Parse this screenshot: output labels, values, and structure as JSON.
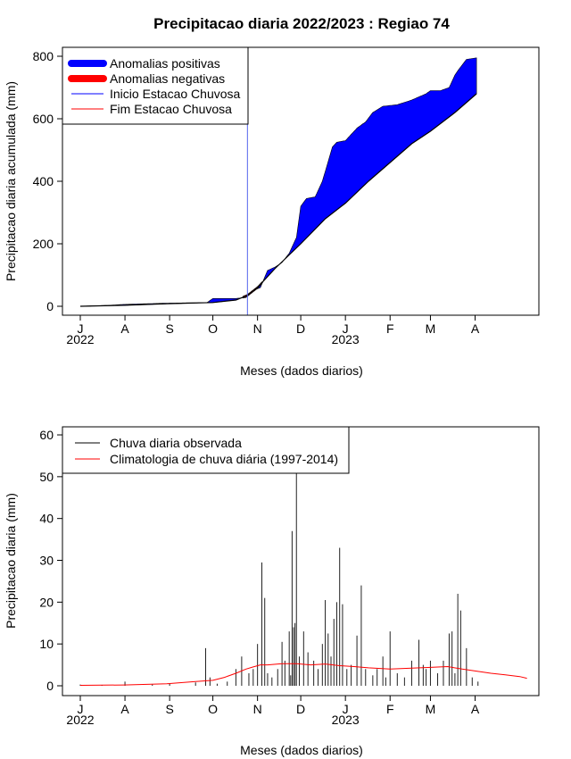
{
  "chart_data": [
    {
      "type": "area",
      "title": "Precipitacao diaria 2022/2023 : Regiao 74",
      "xlabel": "Meses (dados diarios)",
      "ylabel": "Precipitacao diaria acumulada (mm)",
      "ylim": [
        0,
        800
      ],
      "yticks": [
        "0",
        "200",
        "400",
        "600",
        "800"
      ],
      "xlim_day": [
        0,
        304
      ],
      "month_ticks": [
        {
          "label": "J",
          "day": 0
        },
        {
          "label": "A",
          "day": 31
        },
        {
          "label": "S",
          "day": 62
        },
        {
          "label": "O",
          "day": 92
        },
        {
          "label": "N",
          "day": 123
        },
        {
          "label": "D",
          "day": 153
        },
        {
          "label": "J",
          "day": 184
        },
        {
          "label": "F",
          "day": 215
        },
        {
          "label": "M",
          "day": 243
        },
        {
          "label": "A",
          "day": 274
        }
      ],
      "year_labels": [
        {
          "label": "2022",
          "day": 0
        },
        {
          "label": "2023",
          "day": 184
        }
      ],
      "legend": {
        "position": "top-left",
        "items": [
          {
            "label": "Anomalias positivas",
            "color": "#0000ff",
            "style": "thick"
          },
          {
            "label": "Anomalias negativas",
            "color": "#ff0000",
            "style": "thick"
          },
          {
            "label": "Inicio Estacao Chuvosa",
            "color": "#0000ff",
            "style": "thin"
          },
          {
            "label": "Fim Estacao Chuvosa",
            "color": "#ff0000",
            "style": "thin"
          }
        ]
      },
      "rainy_season_start_day": 116,
      "climatology_accum": {
        "days": [
          0,
          30,
          60,
          92,
          108,
          116,
          123,
          135,
          153,
          170,
          184,
          200,
          215,
          230,
          243,
          260,
          275
        ],
        "values": [
          0,
          3,
          8,
          12,
          20,
          35,
          60,
          120,
          200,
          280,
          330,
          400,
          460,
          520,
          560,
          620,
          680
        ]
      },
      "observed_accum": {
        "days": [
          0,
          20,
          30,
          60,
          88,
          92,
          108,
          115,
          120,
          125,
          130,
          135,
          140,
          145,
          150,
          153,
          157,
          163,
          168,
          175,
          178,
          184,
          192,
          198,
          203,
          210,
          220,
          230,
          240,
          243,
          250,
          256,
          260,
          263,
          268,
          275
        ],
        "values": [
          0,
          3,
          6,
          10,
          12,
          25,
          25,
          28,
          50,
          60,
          115,
          125,
          140,
          170,
          220,
          320,
          345,
          350,
          400,
          510,
          525,
          530,
          570,
          590,
          620,
          640,
          645,
          660,
          680,
          690,
          690,
          700,
          740,
          760,
          790,
          795
        ]
      },
      "negative_anomaly_span_days": [
        113,
        126
      ]
    },
    {
      "type": "bar",
      "title": "",
      "xlabel": "Meses (dados diarios)",
      "ylabel": "Precipitacao diaria (mm)",
      "ylim": [
        0,
        60
      ],
      "yticks": [
        "0",
        "10",
        "20",
        "30",
        "40",
        "50",
        "60"
      ],
      "xlim_day": [
        0,
        310
      ],
      "month_ticks": [
        {
          "label": "J",
          "day": 0
        },
        {
          "label": "A",
          "day": 31
        },
        {
          "label": "S",
          "day": 62
        },
        {
          "label": "O",
          "day": 92
        },
        {
          "label": "N",
          "day": 123
        },
        {
          "label": "D",
          "day": 153
        },
        {
          "label": "J",
          "day": 184
        },
        {
          "label": "F",
          "day": 215
        },
        {
          "label": "M",
          "day": 243
        },
        {
          "label": "A",
          "day": 274
        }
      ],
      "year_labels": [
        {
          "label": "2022",
          "day": 0
        },
        {
          "label": "2023",
          "day": 184
        }
      ],
      "legend": {
        "position": "top-left",
        "items": [
          {
            "label": "Chuva diaria observada",
            "color": "#000000"
          },
          {
            "label": "Climatologia de chuva diária (1997-2014)",
            "color": "#ff0000"
          }
        ]
      },
      "observed_daily": {
        "days": [
          0,
          15,
          31,
          50,
          62,
          80,
          87,
          90,
          95,
          102,
          108,
          112,
          117,
          120,
          123,
          126,
          128,
          130,
          133,
          137,
          140,
          142,
          145,
          146,
          147,
          148,
          149,
          150,
          152,
          155,
          158,
          162,
          165,
          168,
          170,
          172,
          174,
          176,
          178,
          180,
          182,
          185,
          188,
          192,
          195,
          198,
          203,
          206,
          210,
          212,
          215,
          220,
          225,
          230,
          235,
          238,
          240,
          243,
          248,
          252,
          256,
          258,
          260,
          262,
          264,
          268,
          272,
          276
        ],
        "values": [
          0.3,
          0.2,
          1.0,
          0.3,
          0.5,
          0.8,
          9.0,
          2.0,
          0.5,
          1.0,
          4.0,
          7.0,
          3.0,
          4.0,
          10.0,
          29.5,
          21.0,
          3.0,
          2.0,
          4.0,
          10.5,
          6.0,
          13.0,
          2.5,
          37.0,
          14.0,
          15.0,
          52.0,
          7.0,
          13.0,
          8.0,
          6.0,
          4.0,
          10.0,
          20.5,
          12.5,
          7.0,
          16.0,
          20.0,
          33.0,
          19.5,
          4.0,
          5.0,
          12.0,
          24.0,
          4.0,
          2.5,
          4.0,
          7.0,
          2.0,
          13.0,
          3.0,
          2.0,
          6.0,
          11.0,
          5.0,
          4.0,
          6.0,
          3.0,
          6.0,
          12.5,
          13.0,
          3.0,
          22.0,
          18.0,
          9.0,
          2.0,
          1.0
        ]
      },
      "climatology_daily": {
        "days": [
          0,
          30,
          60,
          80,
          92,
          100,
          108,
          115,
          120,
          125,
          130,
          140,
          150,
          160,
          170,
          180,
          190,
          200,
          215,
          230,
          243,
          255,
          265,
          275,
          285,
          295,
          305,
          310
        ],
        "values": [
          0.1,
          0.2,
          0.5,
          1.0,
          1.3,
          2.0,
          3.0,
          4.0,
          4.5,
          5.0,
          5.0,
          5.3,
          5.3,
          5.0,
          5.2,
          4.8,
          4.6,
          4.3,
          4.0,
          4.2,
          4.4,
          4.6,
          4.0,
          3.5,
          3.0,
          2.6,
          2.2,
          1.8
        ]
      }
    }
  ]
}
